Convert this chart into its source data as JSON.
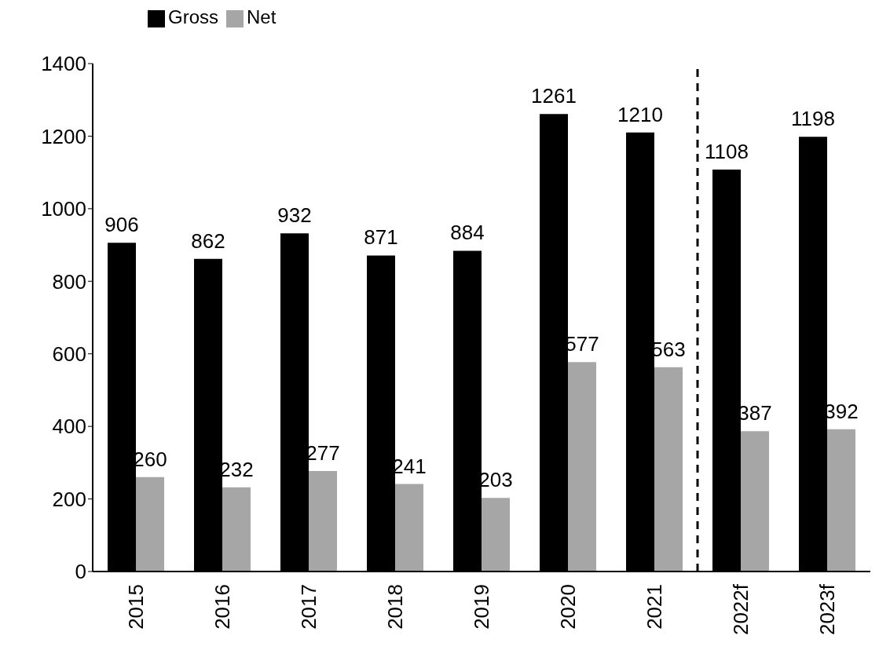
{
  "chart_data": {
    "type": "bar",
    "categories": [
      "2015",
      "2016",
      "2017",
      "2018",
      "2019",
      "2020",
      "2021",
      "2022f",
      "2023f"
    ],
    "series": [
      {
        "name": "Gross",
        "color": "#000000",
        "values": [
          906,
          862,
          932,
          871,
          884,
          1261,
          1210,
          1108,
          1198
        ]
      },
      {
        "name": "Net",
        "color": "#a6a6a6",
        "values": [
          260,
          232,
          277,
          241,
          203,
          577,
          563,
          387,
          392
        ]
      }
    ],
    "ylim": [
      0,
      1400
    ],
    "yticks": [
      0,
      200,
      400,
      600,
      800,
      1000,
      1200,
      1400
    ],
    "grid": false,
    "legend": "top left",
    "data_labels": true
  }
}
